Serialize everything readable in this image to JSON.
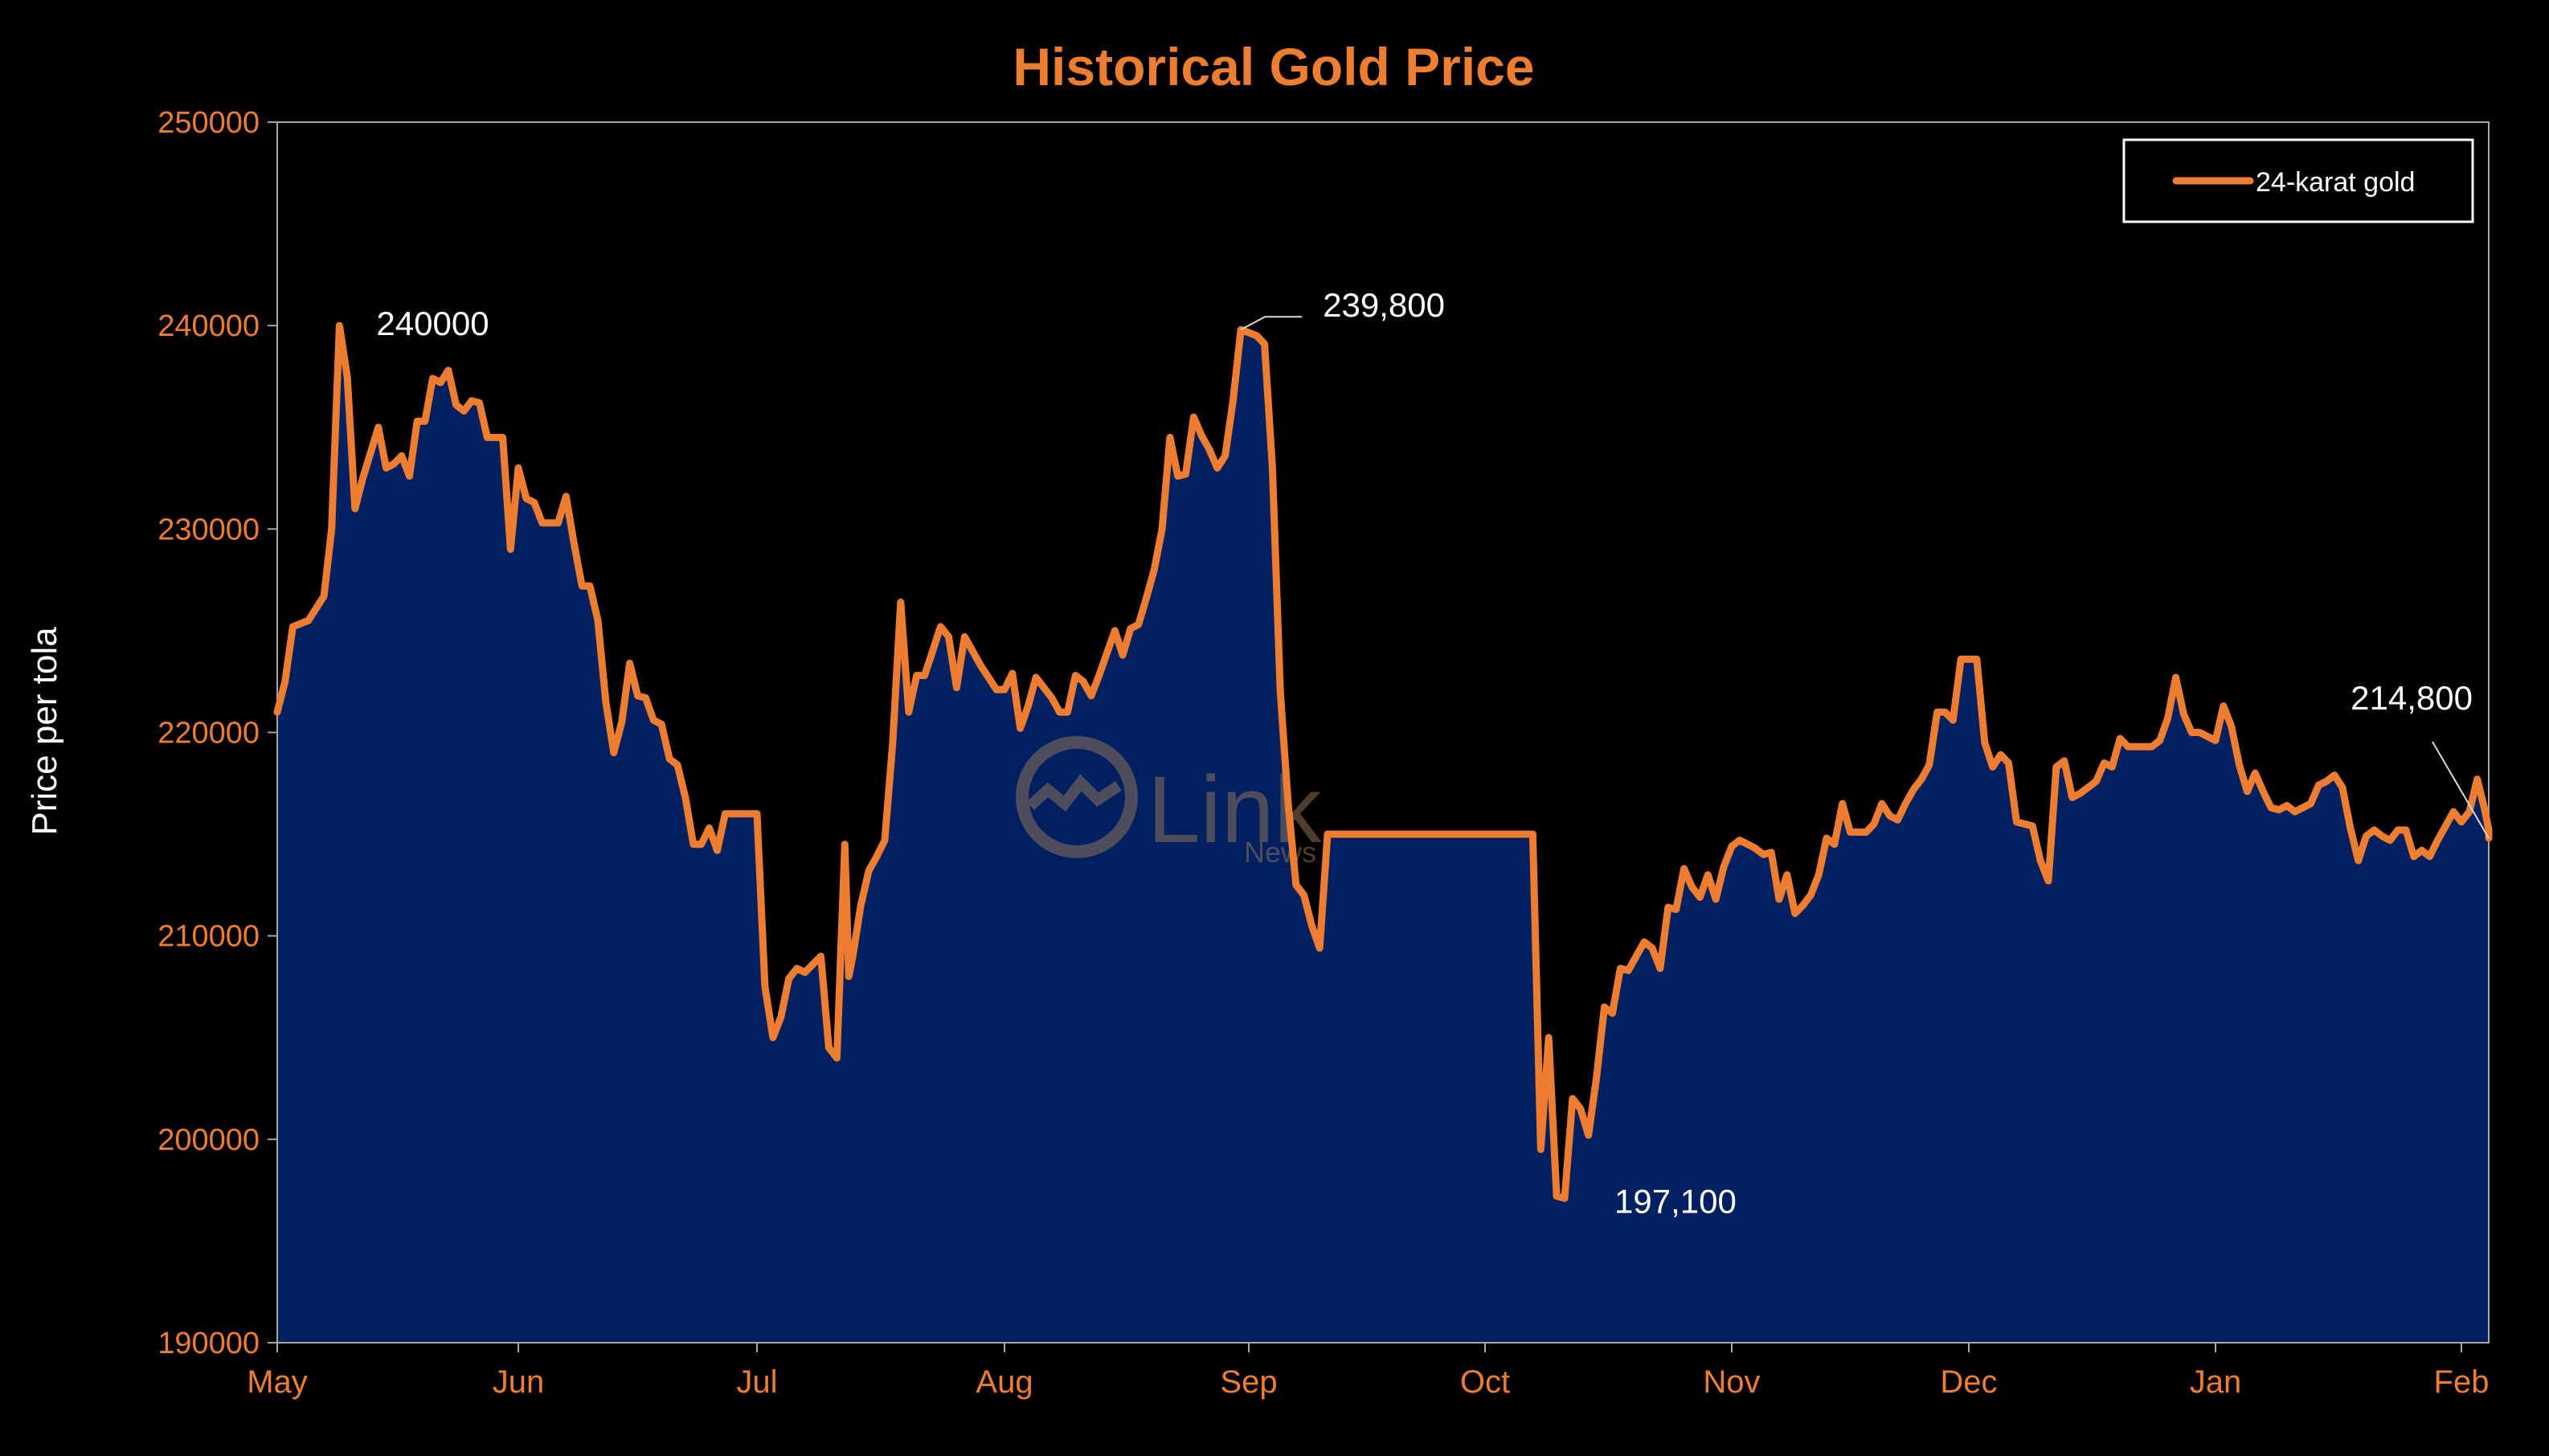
{
  "chart_data": {
    "type": "area",
    "title": "Historical Gold Price",
    "xlabel": "",
    "ylabel": "Price per tola",
    "ylim": [
      190000,
      250000
    ],
    "yticks": [
      190000,
      200000,
      210000,
      220000,
      230000,
      240000,
      250000
    ],
    "xlim": [
      0,
      277
    ],
    "xticks": [
      {
        "label": "May",
        "x": 0
      },
      {
        "label": "Jun",
        "x": 31
      },
      {
        "label": "Jul",
        "x": 61
      },
      {
        "label": "Aug",
        "x": 92
      },
      {
        "label": "Sep",
        "x": 123
      },
      {
        "label": "Oct",
        "x": 153
      },
      {
        "label": "Nov",
        "x": 184
      },
      {
        "label": "Dec",
        "x": 214
      },
      {
        "label": "Jan",
        "x": 245
      },
      {
        "label": "Feb",
        "x": 276
      }
    ],
    "grid": false,
    "legend": {
      "position": "top-right"
    },
    "series": [
      {
        "name": "24-karat gold",
        "line_color": "#ED7D31",
        "fill_color": "#002060",
        "points": [
          [
            0,
            221000
          ],
          [
            1,
            222500
          ],
          [
            2,
            225200
          ],
          [
            4,
            225500
          ],
          [
            6,
            226700
          ],
          [
            7,
            230000
          ],
          [
            8,
            240000
          ],
          [
            9,
            237500
          ],
          [
            10,
            231000
          ],
          [
            11,
            232500
          ],
          [
            13,
            235000
          ],
          [
            14,
            233000
          ],
          [
            15,
            233200
          ],
          [
            16,
            233600
          ],
          [
            17,
            232600
          ],
          [
            18,
            235300
          ],
          [
            19,
            235300
          ],
          [
            20,
            237400
          ],
          [
            21,
            237200
          ],
          [
            22,
            237800
          ],
          [
            23,
            236100
          ],
          [
            24,
            235800
          ],
          [
            25,
            236300
          ],
          [
            26,
            236200
          ],
          [
            27,
            234500
          ],
          [
            29,
            234500
          ],
          [
            30,
            229000
          ],
          [
            31,
            233000
          ],
          [
            32,
            231500
          ],
          [
            33,
            231300
          ],
          [
            34,
            230300
          ],
          [
            36,
            230300
          ],
          [
            37,
            231600
          ],
          [
            38,
            229300
          ],
          [
            39,
            227200
          ],
          [
            40,
            227200
          ],
          [
            41,
            225500
          ],
          [
            42,
            221500
          ],
          [
            43,
            219000
          ],
          [
            44,
            220500
          ],
          [
            45,
            223400
          ],
          [
            46,
            221800
          ],
          [
            47,
            221700
          ],
          [
            48,
            220600
          ],
          [
            49,
            220400
          ],
          [
            50,
            218700
          ],
          [
            51,
            218400
          ],
          [
            52,
            216800
          ],
          [
            53,
            214500
          ],
          [
            54,
            214500
          ],
          [
            55,
            215300
          ],
          [
            56,
            214200
          ],
          [
            57,
            216000
          ],
          [
            61,
            216000
          ],
          [
            62,
            207500
          ],
          [
            63,
            205000
          ],
          [
            64,
            206000
          ],
          [
            65,
            207900
          ],
          [
            66,
            208400
          ],
          [
            67,
            208200
          ],
          [
            68,
            208600
          ],
          [
            69,
            209000
          ],
          [
            70,
            204500
          ],
          [
            71,
            204000
          ],
          [
            72,
            214500
          ],
          [
            72.5,
            208000
          ],
          [
            73,
            209000
          ],
          [
            74,
            211500
          ],
          [
            75,
            213200
          ],
          [
            76,
            213900
          ],
          [
            77,
            214700
          ],
          [
            78,
            219500
          ],
          [
            79,
            226400
          ],
          [
            80,
            221000
          ],
          [
            81,
            222800
          ],
          [
            82,
            222800
          ],
          [
            83,
            224000
          ],
          [
            84,
            225200
          ],
          [
            85,
            224700
          ],
          [
            86,
            222200
          ],
          [
            87,
            224700
          ],
          [
            88,
            224000
          ],
          [
            89,
            223300
          ],
          [
            90,
            222700
          ],
          [
            91,
            222100
          ],
          [
            92,
            222100
          ],
          [
            93,
            222900
          ],
          [
            94,
            220200
          ],
          [
            95,
            221300
          ],
          [
            96,
            222700
          ],
          [
            97,
            222200
          ],
          [
            98,
            221700
          ],
          [
            99,
            221000
          ],
          [
            100,
            221000
          ],
          [
            101,
            222800
          ],
          [
            102,
            222500
          ],
          [
            103,
            221800
          ],
          [
            104,
            222800
          ],
          [
            105,
            223900
          ],
          [
            106,
            225000
          ],
          [
            107,
            223800
          ],
          [
            108,
            225100
          ],
          [
            109,
            225300
          ],
          [
            110,
            226600
          ],
          [
            111,
            228000
          ],
          [
            112,
            230000
          ],
          [
            113,
            234500
          ],
          [
            114,
            232600
          ],
          [
            115,
            232700
          ],
          [
            116,
            235500
          ],
          [
            117,
            234600
          ],
          [
            118,
            233900
          ],
          [
            119,
            233000
          ],
          [
            120,
            233600
          ],
          [
            121,
            236300
          ],
          [
            122,
            239800
          ],
          [
            124,
            239500
          ],
          [
            125,
            239100
          ],
          [
            126,
            233000
          ],
          [
            127,
            222000
          ],
          [
            128,
            216500
          ],
          [
            129,
            212500
          ],
          [
            130,
            212000
          ],
          [
            131,
            210500
          ],
          [
            132,
            209400
          ],
          [
            133,
            215000
          ],
          [
            159,
            215000
          ],
          [
            160,
            199500
          ],
          [
            161,
            205000
          ],
          [
            162,
            197200
          ],
          [
            163,
            197100
          ],
          [
            164,
            202000
          ],
          [
            165,
            201500
          ],
          [
            166,
            200200
          ],
          [
            167,
            203000
          ],
          [
            168,
            206500
          ],
          [
            169,
            206200
          ],
          [
            170,
            208400
          ],
          [
            171,
            208300
          ],
          [
            172,
            209000
          ],
          [
            173,
            209700
          ],
          [
            174,
            209400
          ],
          [
            175,
            208400
          ],
          [
            176,
            211400
          ],
          [
            177,
            211300
          ],
          [
            178,
            213300
          ],
          [
            179,
            212400
          ],
          [
            180,
            211900
          ],
          [
            181,
            213000
          ],
          [
            182,
            211800
          ],
          [
            183,
            213400
          ],
          [
            184,
            214400
          ],
          [
            185,
            214700
          ],
          [
            186,
            214500
          ],
          [
            187,
            214300
          ],
          [
            188,
            214000
          ],
          [
            189,
            214100
          ],
          [
            190,
            211800
          ],
          [
            191,
            213000
          ],
          [
            192,
            211100
          ],
          [
            193,
            211500
          ],
          [
            194,
            212000
          ],
          [
            195,
            213000
          ],
          [
            196,
            214800
          ],
          [
            197,
            214500
          ],
          [
            198,
            216500
          ],
          [
            199,
            215100
          ],
          [
            200,
            215100
          ],
          [
            201,
            215100
          ],
          [
            202,
            215500
          ],
          [
            203,
            216500
          ],
          [
            204,
            215900
          ],
          [
            205,
            215700
          ],
          [
            206,
            216500
          ],
          [
            207,
            217200
          ],
          [
            208,
            217700
          ],
          [
            209,
            218400
          ],
          [
            210,
            221000
          ],
          [
            211,
            221000
          ],
          [
            212,
            220600
          ],
          [
            213,
            223600
          ],
          [
            215,
            223600
          ],
          [
            216,
            219500
          ],
          [
            217,
            218300
          ],
          [
            218,
            218900
          ],
          [
            219,
            218500
          ],
          [
            220,
            215600
          ],
          [
            222,
            215400
          ],
          [
            223,
            213700
          ],
          [
            224,
            212700
          ],
          [
            225,
            218300
          ],
          [
            226,
            218600
          ],
          [
            227,
            216800
          ],
          [
            228,
            217000
          ],
          [
            229,
            217300
          ],
          [
            230,
            217600
          ],
          [
            231,
            218500
          ],
          [
            232,
            218300
          ],
          [
            233,
            219700
          ],
          [
            234,
            219300
          ],
          [
            235,
            219300
          ],
          [
            236,
            219300
          ],
          [
            237,
            219300
          ],
          [
            238,
            219600
          ],
          [
            239,
            220700
          ],
          [
            240,
            222700
          ],
          [
            241,
            220900
          ],
          [
            242,
            220000
          ],
          [
            243,
            220000
          ],
          [
            244,
            219800
          ],
          [
            245,
            219600
          ],
          [
            246,
            221300
          ],
          [
            247,
            220300
          ],
          [
            248,
            218400
          ],
          [
            249,
            217100
          ],
          [
            250,
            218000
          ],
          [
            251,
            217100
          ],
          [
            252,
            216300
          ],
          [
            253,
            216200
          ],
          [
            254,
            216400
          ],
          [
            255,
            216100
          ],
          [
            256,
            216300
          ],
          [
            257,
            216500
          ],
          [
            258,
            217400
          ],
          [
            259,
            217600
          ],
          [
            260,
            217900
          ],
          [
            261,
            217300
          ],
          [
            262,
            215300
          ],
          [
            263,
            213700
          ],
          [
            264,
            214900
          ],
          [
            265,
            215200
          ],
          [
            266,
            214900
          ],
          [
            267,
            214700
          ],
          [
            268,
            215200
          ],
          [
            269,
            215200
          ],
          [
            270,
            213900
          ],
          [
            271,
            214200
          ],
          [
            272,
            213900
          ],
          [
            273,
            214700
          ],
          [
            274,
            215400
          ],
          [
            275,
            216100
          ],
          [
            276,
            215600
          ],
          [
            277,
            216100
          ],
          [
            278,
            217700
          ],
          [
            279,
            216100
          ],
          [
            280,
            215200
          ],
          [
            281,
            214800
          ]
        ]
      }
    ],
    "annotations": [
      {
        "text": "240000",
        "x": 8,
        "y": 240000
      },
      {
        "text": "239,800",
        "x": 122,
        "y": 239800
      },
      {
        "text": "197,100",
        "x": 163,
        "y": 197100
      },
      {
        "text": "214,800",
        "x": 281,
        "y": 214800
      }
    ],
    "watermark": {
      "main": "Link",
      "sub": "News"
    },
    "colors": {
      "background": "#000000",
      "accent": "#ED7D31",
      "area": "#002060",
      "annotation_text": "#FFFFFF",
      "axis_line": "#A6A6A6"
    }
  }
}
